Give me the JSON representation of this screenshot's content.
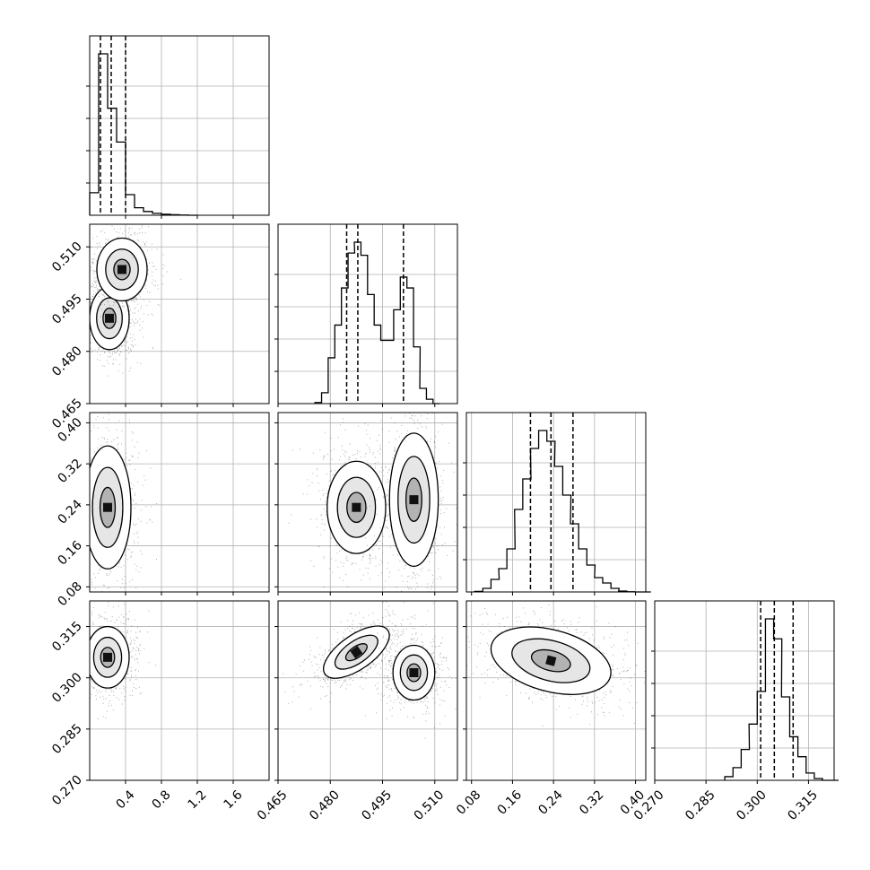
{
  "chart_data": {
    "type": "corner",
    "grid": true,
    "panel_count": 10,
    "parameters": [
      {
        "name": "",
        "range": [
          0.0,
          2.0
        ],
        "ticks": [
          0.4,
          0.8,
          1.2,
          1.6
        ],
        "tick_labels": [
          "0.4",
          "0.8",
          "1.2",
          "1.6"
        ],
        "quantiles": [
          0.12,
          0.24,
          0.4
        ]
      },
      {
        "name": "",
        "range": [
          0.465,
          0.5165
        ],
        "ticks": [
          0.465,
          0.48,
          0.495,
          0.51
        ],
        "tick_labels": [
          "0.465",
          "0.480",
          "0.495",
          "0.510"
        ],
        "quantiles": [
          0.4847,
          0.4879,
          0.501
        ]
      },
      {
        "name": "",
        "range": [
          0.07,
          0.42
        ],
        "ticks": [
          0.08,
          0.16,
          0.24,
          0.32,
          0.4
        ],
        "tick_labels": [
          "0.08",
          "0.16",
          "0.24",
          "0.32",
          "0.40"
        ],
        "quantiles": [
          0.195,
          0.235,
          0.278
        ]
      },
      {
        "name": "",
        "range": [
          0.27,
          0.3225
        ],
        "ticks": [
          0.27,
          0.285,
          0.3,
          0.315
        ],
        "tick_labels": [
          "0.270",
          "0.285",
          "0.300",
          "0.315"
        ],
        "quantiles": [
          0.301,
          0.305,
          0.3105
        ]
      }
    ],
    "histograms": [
      {
        "param": 0,
        "bins": [
          0.0,
          0.1,
          0.2,
          0.3,
          0.4,
          0.5,
          0.6,
          0.7,
          0.8,
          0.9,
          1.0,
          1.1
        ],
        "counts": [
          0.12,
          0.86,
          0.57,
          0.39,
          0.11,
          0.04,
          0.02,
          0.01,
          0.005,
          0.003,
          0.001,
          0.0
        ]
      },
      {
        "param": 1,
        "bins": [
          0.4756,
          0.4775,
          0.4794,
          0.4813,
          0.4832,
          0.4851,
          0.4869,
          0.4888,
          0.4907,
          0.4926,
          0.4945,
          0.4963,
          0.4982,
          0.5001,
          0.502,
          0.5039,
          0.5057,
          0.5076,
          0.5095
        ],
        "counts": [
          0.005,
          0.05,
          0.21,
          0.36,
          0.53,
          0.69,
          0.74,
          0.68,
          0.5,
          0.36,
          0.29,
          0.29,
          0.43,
          0.58,
          0.53,
          0.26,
          0.07,
          0.02,
          0.0
        ]
      },
      {
        "param": 2,
        "bins": [
          0.086,
          0.102,
          0.118,
          0.133,
          0.149,
          0.164,
          0.18,
          0.195,
          0.211,
          0.227,
          0.242,
          0.258,
          0.273,
          0.289,
          0.305,
          0.32,
          0.336,
          0.352,
          0.367,
          0.383,
          0.398,
          0.414
        ],
        "counts": [
          0.003,
          0.02,
          0.07,
          0.13,
          0.24,
          0.46,
          0.63,
          0.8,
          0.9,
          0.84,
          0.7,
          0.54,
          0.38,
          0.24,
          0.15,
          0.08,
          0.05,
          0.02,
          0.005,
          0.001,
          0.0,
          0.0
        ]
      },
      {
        "param": 3,
        "bins": [
          0.2905,
          0.2929,
          0.2953,
          0.2976,
          0.3,
          0.3024,
          0.3048,
          0.3071,
          0.3095,
          0.3119,
          0.3143,
          0.3167,
          0.319,
          0.3214
        ],
        "counts": [
          0.02,
          0.07,
          0.17,
          0.31,
          0.49,
          0.89,
          0.78,
          0.46,
          0.24,
          0.13,
          0.04,
          0.01,
          0.0,
          0.0
        ]
      }
    ],
    "contour_panels": [
      {
        "row": 1,
        "col": 0,
        "modes": [
          {
            "cx": 0.22,
            "cy": 0.4895,
            "sx": 0.11,
            "sy": 0.0045
          },
          {
            "cx": 0.36,
            "cy": 0.5035,
            "sx": 0.14,
            "sy": 0.0045
          }
        ]
      },
      {
        "row": 2,
        "col": 0,
        "modes": [
          {
            "cx": 0.2,
            "cy": 0.235,
            "sx": 0.13,
            "sy": 0.06
          }
        ]
      },
      {
        "row": 2,
        "col": 1,
        "modes": [
          {
            "cx": 0.4875,
            "cy": 0.235,
            "sx": 0.0042,
            "sy": 0.045
          },
          {
            "cx": 0.504,
            "cy": 0.25,
            "sx": 0.0035,
            "sy": 0.065
          }
        ]
      },
      {
        "row": 3,
        "col": 0,
        "modes": [
          {
            "cx": 0.2,
            "cy": 0.306,
            "sx": 0.12,
            "sy": 0.0045
          }
        ]
      },
      {
        "row": 3,
        "col": 1,
        "modes": [
          {
            "cx": 0.4875,
            "cy": 0.3075,
            "sx": 0.0055,
            "sy": 0.0025,
            "angle": -35
          },
          {
            "cx": 0.504,
            "cy": 0.3015,
            "sx": 0.003,
            "sy": 0.004
          }
        ]
      },
      {
        "row": 3,
        "col": 2,
        "modes": [
          {
            "cx": 0.235,
            "cy": 0.305,
            "sx": 0.06,
            "sy": 0.0045,
            "angle": 15
          }
        ]
      }
    ],
    "style": {
      "line_color": "#000000",
      "grid_color": "#b0b0b0",
      "scatter_color": "#000000"
    }
  }
}
